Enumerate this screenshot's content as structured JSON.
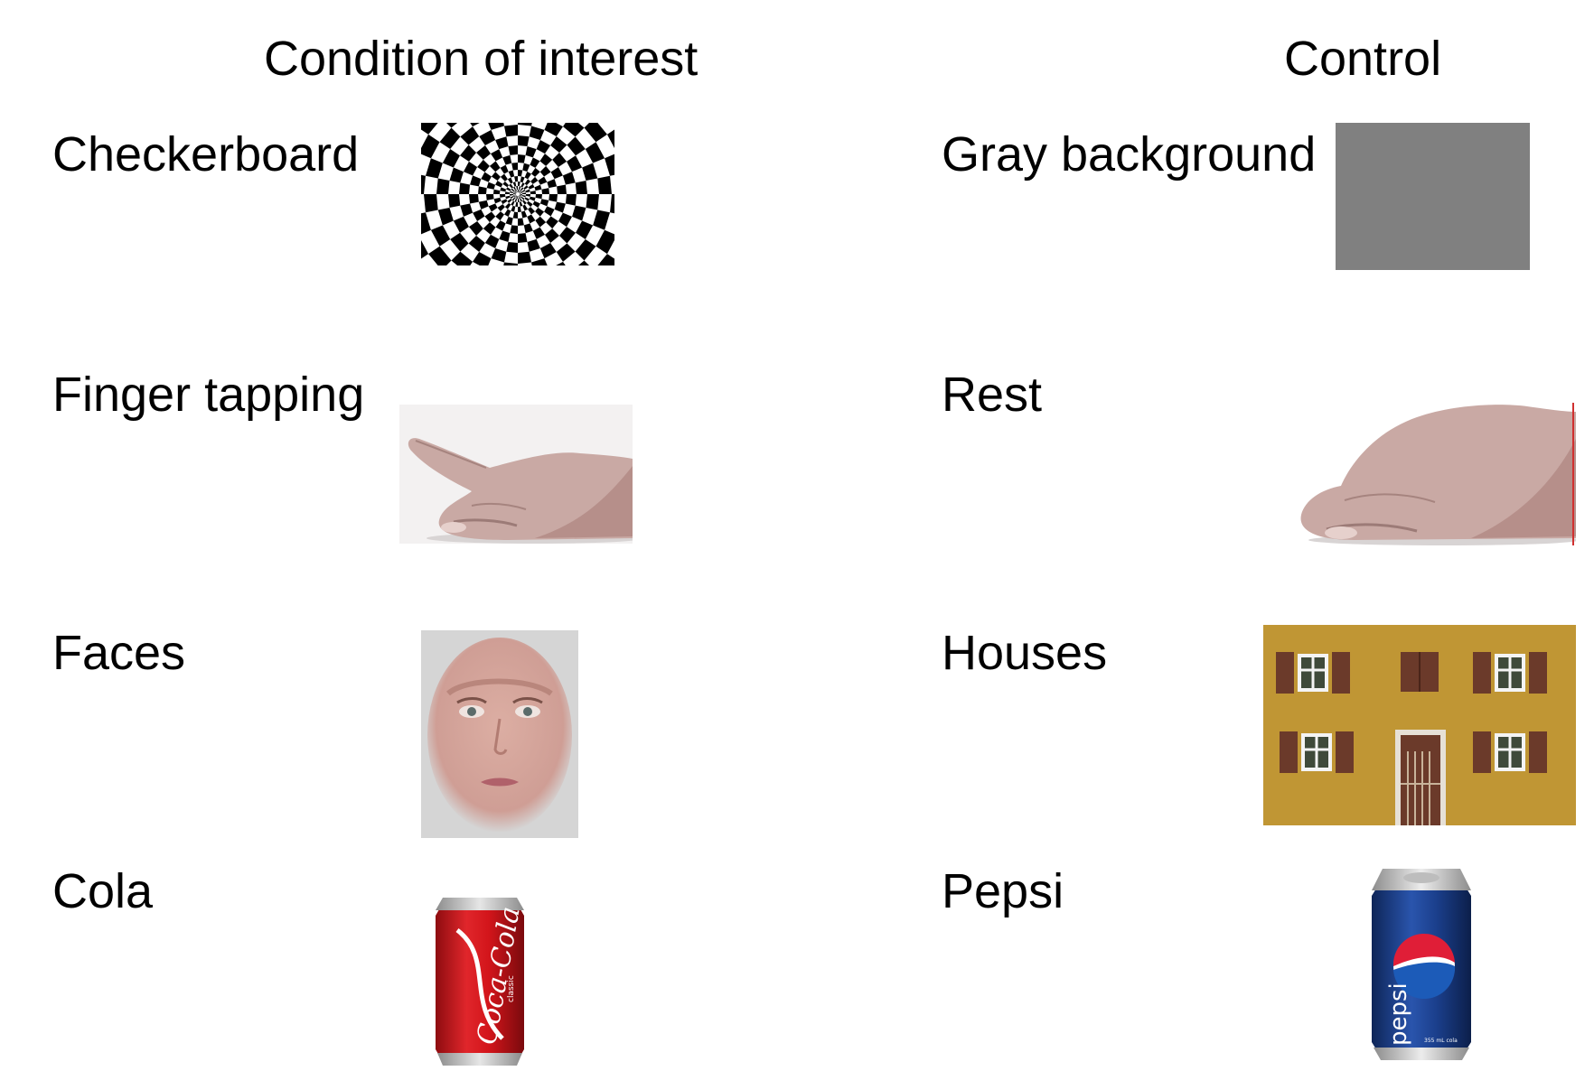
{
  "headings": {
    "condition": "Condition of interest",
    "control": "Control"
  },
  "rows": [
    {
      "condition": {
        "label": "Checkerboard",
        "picture": "radial-checkerboard"
      },
      "control": {
        "label": "Gray background",
        "picture": "gray-square"
      }
    },
    {
      "condition": {
        "label": "Finger tapping",
        "picture": "hand-finger-raised"
      },
      "control": {
        "label": "Rest",
        "picture": "hand-resting"
      }
    },
    {
      "condition": {
        "label": "Faces",
        "picture": "face-photo"
      },
      "control": {
        "label": "Houses",
        "picture": "house-facade"
      }
    },
    {
      "condition": {
        "label": "Cola",
        "picture": "coca-cola-can"
      },
      "control": {
        "label": "Pepsi",
        "picture": "pepsi-can"
      }
    }
  ],
  "colors": {
    "gray_background": "#808080",
    "house_wall": "#c49a36",
    "shutter": "#6b3a2a",
    "coke_red": "#d3151b",
    "pepsi_blue": "#1b3f8c"
  }
}
